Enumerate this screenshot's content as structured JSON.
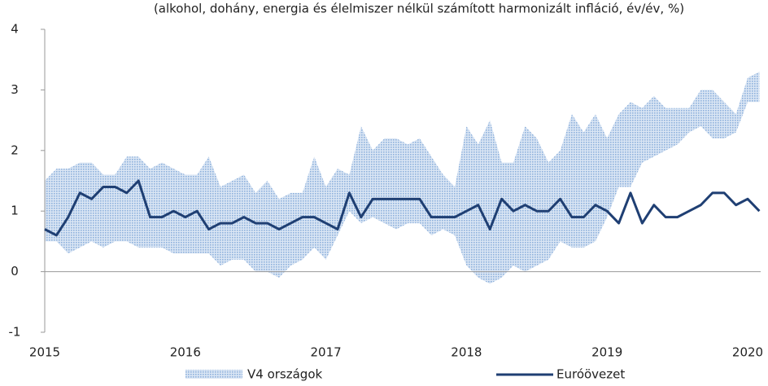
{
  "chart_data": {
    "type": "band-line",
    "subtitle": "(alkohol, dohány, energia és élelmiszer nélkül számított harmonizált infláció, év/év, %)",
    "categories": [
      "2015",
      null,
      null,
      null,
      null,
      null,
      null,
      null,
      null,
      null,
      null,
      null,
      "2016",
      null,
      null,
      null,
      null,
      null,
      null,
      null,
      null,
      null,
      null,
      null,
      "2017",
      null,
      null,
      null,
      null,
      null,
      null,
      null,
      null,
      null,
      null,
      null,
      "2018",
      null,
      null,
      null,
      null,
      null,
      null,
      null,
      null,
      null,
      null,
      null,
      "2019",
      null,
      null,
      null,
      null,
      null,
      null,
      null,
      null,
      null,
      null,
      null,
      "2020",
      null
    ],
    "ylim": [
      -1,
      4
    ],
    "yticks": [
      -1,
      0,
      1,
      2,
      3,
      4
    ],
    "series": [
      {
        "name": "V4 országok",
        "color": "#a9c4e4",
        "high": [
          1.5,
          1.7,
          1.7,
          1.8,
          1.8,
          1.6,
          1.6,
          1.9,
          1.9,
          1.7,
          1.8,
          1.7,
          1.6,
          1.6,
          1.9,
          1.4,
          1.5,
          1.6,
          1.3,
          1.5,
          1.2,
          1.3,
          1.3,
          1.9,
          1.4,
          1.7,
          1.6,
          2.4,
          2.0,
          2.2,
          2.2,
          2.1,
          2.2,
          1.9,
          1.6,
          1.4,
          2.4,
          2.1,
          2.5,
          1.8,
          1.8,
          2.4,
          2.2,
          1.8,
          2.0,
          2.6,
          2.3,
          2.6,
          2.2,
          2.6,
          2.8,
          2.7,
          2.9,
          2.7,
          2.7,
          2.7,
          3.0,
          3.0,
          2.8,
          2.6,
          3.2,
          3.3
        ],
        "low": [
          0.5,
          0.5,
          0.3,
          0.4,
          0.5,
          0.4,
          0.5,
          0.5,
          0.4,
          0.4,
          0.4,
          0.3,
          0.3,
          0.3,
          0.3,
          0.1,
          0.2,
          0.2,
          0.0,
          0.0,
          -0.1,
          0.1,
          0.2,
          0.4,
          0.2,
          0.6,
          1.0,
          0.8,
          0.9,
          0.8,
          0.7,
          0.8,
          0.8,
          0.6,
          0.7,
          0.6,
          0.1,
          -0.1,
          -0.2,
          -0.1,
          0.1,
          0.0,
          0.1,
          0.2,
          0.5,
          0.4,
          0.4,
          0.5,
          0.9,
          1.4,
          1.4,
          1.8,
          1.9,
          2.0,
          2.1,
          2.3,
          2.4,
          2.2,
          2.2,
          2.3,
          2.8,
          2.8
        ]
      },
      {
        "name": "Euróövezet",
        "color": "#1f3f73",
        "values": [
          0.7,
          0.6,
          0.9,
          1.3,
          1.2,
          1.4,
          1.4,
          1.3,
          1.5,
          0.9,
          0.9,
          1.0,
          0.9,
          1.0,
          0.7,
          0.8,
          0.8,
          0.9,
          0.8,
          0.8,
          0.7,
          0.8,
          0.9,
          0.9,
          0.8,
          0.7,
          1.3,
          0.9,
          1.2,
          1.2,
          1.2,
          1.2,
          1.2,
          0.9,
          0.9,
          0.9,
          1.0,
          1.1,
          0.7,
          1.2,
          1.0,
          1.1,
          1.0,
          1.0,
          1.2,
          0.9,
          0.9,
          1.1,
          1.0,
          0.8,
          1.3,
          0.8,
          1.1,
          0.9,
          0.9,
          1.0,
          1.1,
          1.3,
          1.3,
          1.1,
          1.2,
          1.0
        ]
      }
    ]
  }
}
